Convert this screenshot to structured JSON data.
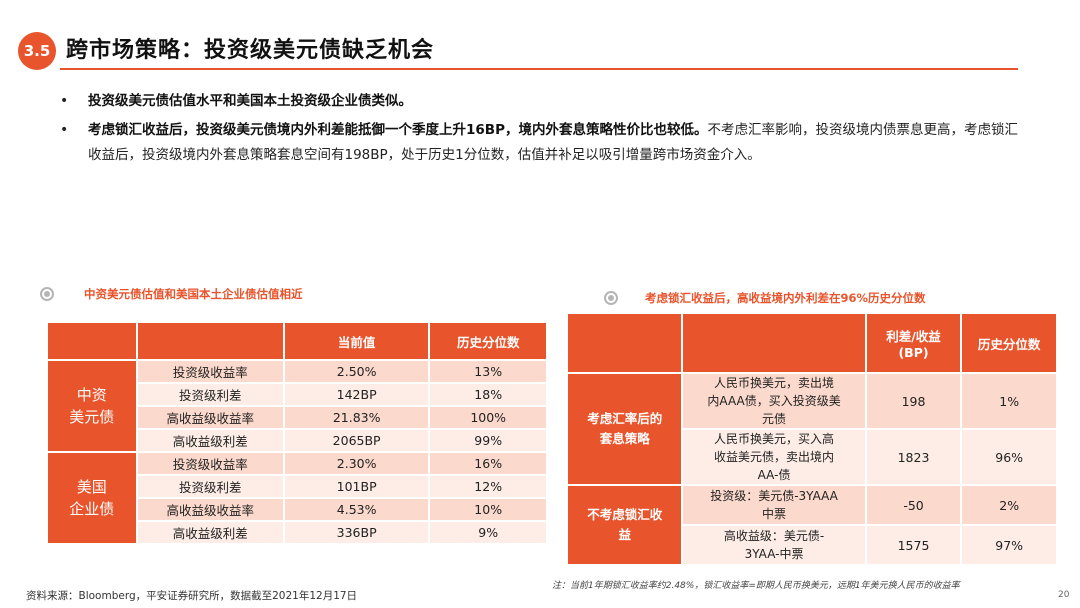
{
  "header": {
    "section": "3.5",
    "title": "跨市场策略：投资级美元债缺乏机会"
  },
  "bullets": [
    {
      "bold": "投资级美元债估值水平和美国本土投资级企业债类似。",
      "text": ""
    },
    {
      "bold": "考虑锁汇收益后，投资级美元债境内外利差能抵御一个季度上升16BP，境内外套息策略性价比也较低。",
      "text": "不考虑汇率影响，投资级境内债票息更高，考虑锁汇收益后，投资级境内外套息策略套息空间有198BP，处于历史1分位数，估值并补足以吸引增量跨市场资金介入。"
    }
  ],
  "left_table": {
    "title": "中资美元债估值和美国本土企业债估值相近",
    "headers": [
      "",
      "",
      "当前值",
      "历史分位数"
    ],
    "groups": [
      {
        "name": "中资\n美元债",
        "rows": [
          [
            "投资级收益率",
            "2.50%",
            "13%"
          ],
          [
            "投资级利差",
            "142BP",
            "18%"
          ],
          [
            "高收益级收益率",
            "21.83%",
            "100%"
          ],
          [
            "高收益级利差",
            "2065BP",
            "99%"
          ]
        ]
      },
      {
        "name": "美国\n企业债",
        "rows": [
          [
            "投资级收益率",
            "2.30%",
            "16%"
          ],
          [
            "投资级利差",
            "101BP",
            "12%"
          ],
          [
            "高收益级收益率",
            "4.53%",
            "10%"
          ],
          [
            "高收益级利差",
            "336BP",
            "9%"
          ]
        ]
      }
    ]
  },
  "right_table": {
    "title": "考虑锁汇收益后，高收益境内外利差在96%历史分位数",
    "headers": [
      "",
      "",
      "利差/收益\n(BP)",
      "历史分位数"
    ],
    "groups": [
      {
        "name": "考虑汇率后的\n套息策略",
        "rows": [
          [
            "人民币换美元，卖出境\n内AAA债，买入投资级美\n元债",
            "198",
            "1%"
          ],
          [
            "人民币换美元，买入高\n收益美元债，卖出境内\nAA-债",
            "1823",
            "96%"
          ]
        ]
      },
      {
        "name": "不考虑锁汇收\n益",
        "rows": [
          [
            "投资级：美元债-3YAAA\n中票",
            "-50",
            "2%"
          ],
          [
            "高收益级：美元债-\n3YAA-中票",
            "1575",
            "97%"
          ]
        ]
      }
    ]
  },
  "footer": {
    "source": "资料来源：Bloomberg，平安证券研究所，数据截至2021年12月17日",
    "note": "注：当前1年期锁汇收益率约2.48%，锁汇收益率=即期人民币换美元，远期1年美元换人民币的收益率",
    "page": "20"
  },
  "colors": {
    "accent": "#E8542C",
    "row_dark": "#FBD9CC",
    "row_light": "#FDEDE6"
  }
}
